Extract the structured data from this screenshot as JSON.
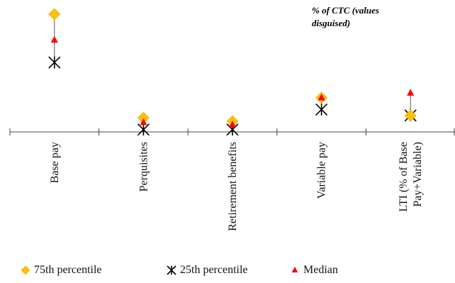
{
  "chart_data": {
    "type": "scatter",
    "title": "",
    "note": "% of CTC (values disguised)",
    "xlabel": "",
    "ylabel": "",
    "categories": [
      "Base pay",
      "Perquisites",
      "Retirement benefits",
      "Variable pay",
      "LTI (% of Base Pay+Variable)"
    ],
    "category_lines": [
      [
        "Base pay"
      ],
      [
        "Perquisites"
      ],
      [
        "Retirement benefits"
      ],
      [
        "Variable pay"
      ],
      [
        "LTI (% of Base",
        "Pay+Variable)"
      ]
    ],
    "series": [
      {
        "name": "75th percentile",
        "values": [
          100,
          12,
          9,
          29,
          14
        ],
        "color": "#FFC000",
        "marker": "diamond"
      },
      {
        "name": "25th percentile",
        "values": [
          59,
          2,
          2,
          19,
          14
        ],
        "color": "#000000",
        "marker": "star"
      },
      {
        "name": "Median",
        "values": [
          78,
          8,
          6,
          29,
          33
        ],
        "color": "#FF0000",
        "marker": "triangle"
      }
    ],
    "connect_series": true,
    "ylim": [
      0,
      100
    ],
    "y_axis_visible": false,
    "grid": false,
    "legend": "bottom"
  }
}
